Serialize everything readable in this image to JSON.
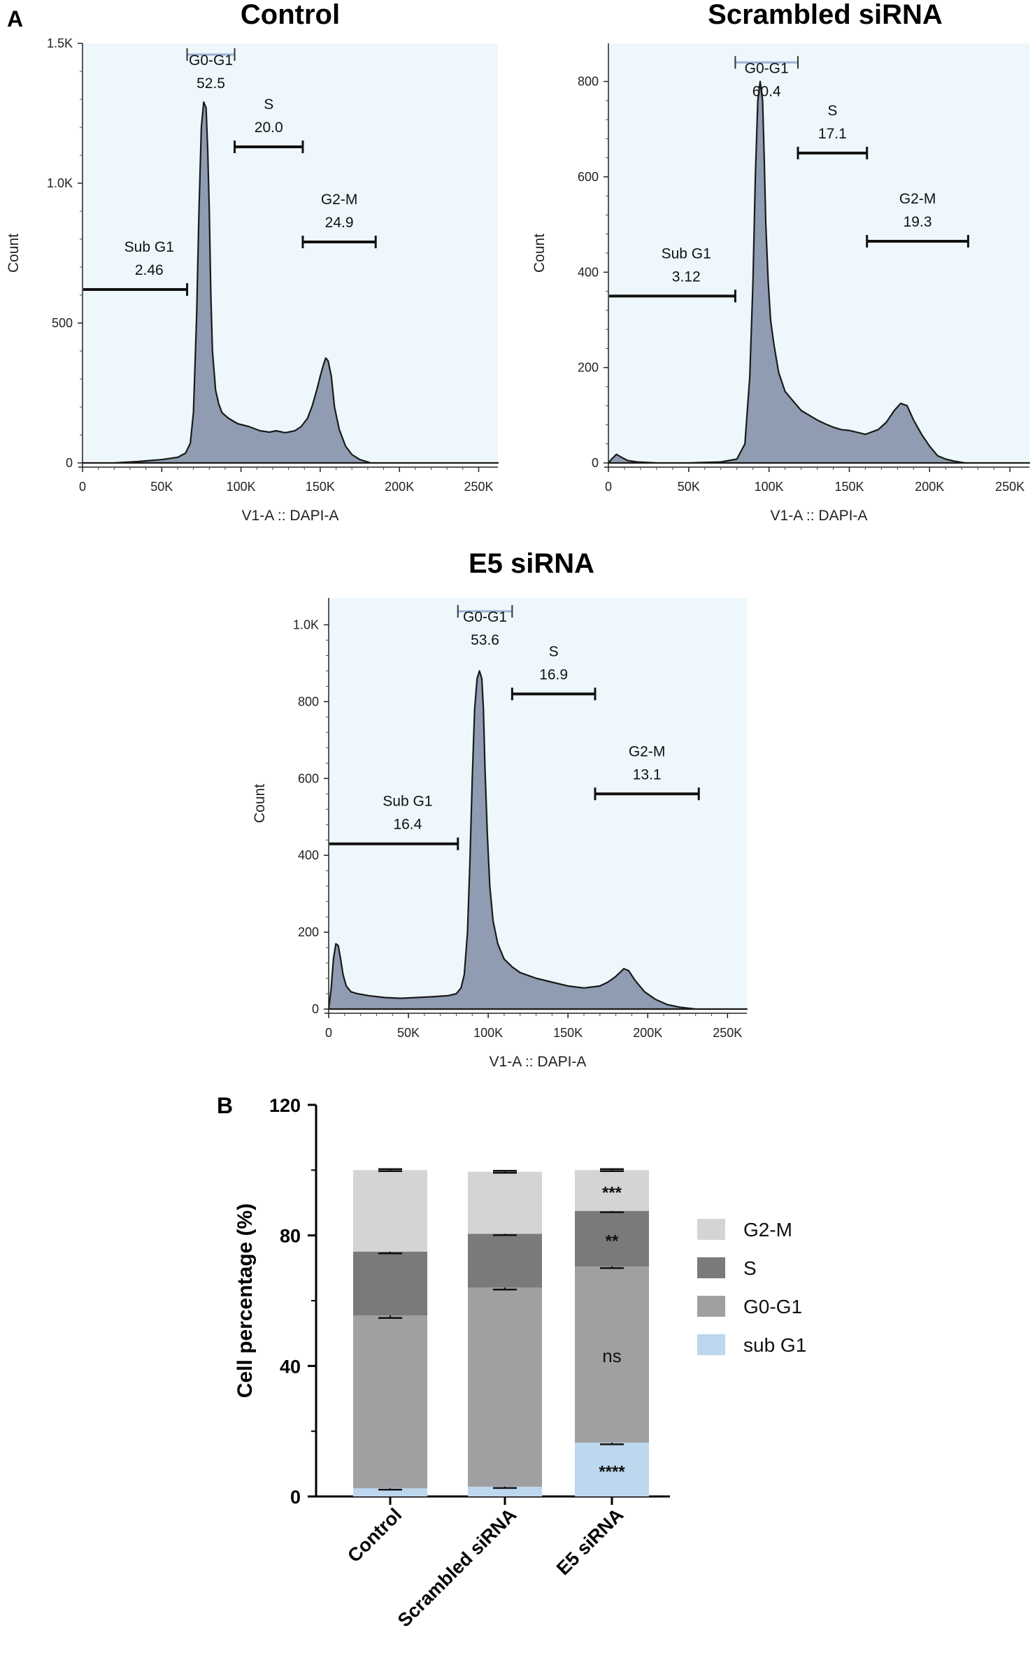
{
  "panel_labels": {
    "a": "A",
    "b": "B"
  },
  "colors": {
    "plot_bg": "#eef7fb",
    "hist_fill": "#8f9cb2",
    "hist_line": "#1a1a1a",
    "gate_g0g1_bar": "#9bb3d3",
    "sub_g1": "#bcd7ee",
    "g0_g1": "#a0a0a3",
    "s": "#7a7a7c",
    "g2_m": "#d4d4d6"
  },
  "chart_data": [
    {
      "type": "area",
      "title": "Control",
      "xlabel": "V1-A :: DAPI-A",
      "ylabel": "Count",
      "xlim": [
        0,
        262144
      ],
      "ylim": [
        0,
        1500
      ],
      "xticks": [
        0,
        50000,
        100000,
        150000,
        200000,
        250000
      ],
      "xtick_labels": [
        "0",
        "50K",
        "100K",
        "150K",
        "200K",
        "250K"
      ],
      "yticks": [
        0,
        500,
        1000,
        1500
      ],
      "ytick_labels": [
        "0",
        "500",
        "1.0K",
        "1.5K"
      ],
      "x": [
        0,
        20000,
        35000,
        50000,
        60000,
        65000,
        68000,
        70000,
        72000,
        73500,
        75000,
        76500,
        78000,
        79000,
        80000,
        81000,
        82000,
        84000,
        86000,
        88000,
        92000,
        98000,
        105000,
        112000,
        118000,
        122000,
        128000,
        134000,
        138000,
        142000,
        145000,
        148000,
        150000,
        152000,
        153500,
        155000,
        157000,
        159000,
        162000,
        166000,
        170000,
        175000,
        182000,
        200000,
        262144
      ],
      "y": [
        0,
        0,
        5,
        12,
        20,
        35,
        70,
        180,
        520,
        900,
        1200,
        1290,
        1270,
        1120,
        900,
        600,
        400,
        260,
        210,
        180,
        160,
        140,
        130,
        115,
        110,
        115,
        108,
        115,
        130,
        160,
        205,
        265,
        310,
        350,
        375,
        365,
        310,
        200,
        120,
        60,
        30,
        12,
        0,
        0,
        0
      ],
      "gates": [
        {
          "name": "Sub G1",
          "value": "2.46",
          "x_range": [
            0,
            66000
          ],
          "y": 620
        },
        {
          "name": "G0-G1",
          "value": "52.5",
          "x_range": [
            66000,
            96000
          ],
          "y": 1460
        },
        {
          "name": "S",
          "value": "20.0",
          "x_range": [
            96000,
            139000
          ],
          "y": 1130
        },
        {
          "name": "G2-M",
          "value": "24.9",
          "x_range": [
            139000,
            185000
          ],
          "y": 790
        }
      ]
    },
    {
      "type": "area",
      "title": "Scrambled siRNA",
      "xlabel": "V1-A :: DAPI-A",
      "ylabel": "Count",
      "xlim": [
        0,
        262144
      ],
      "ylim": [
        0,
        880
      ],
      "xticks": [
        0,
        50000,
        100000,
        150000,
        200000,
        250000
      ],
      "xtick_labels": [
        "0",
        "50K",
        "100K",
        "150K",
        "200K",
        "250K"
      ],
      "yticks": [
        0,
        200,
        400,
        600,
        800
      ],
      "ytick_labels": [
        "0",
        "200",
        "400",
        "600",
        "800"
      ],
      "x": [
        0,
        2000,
        5000,
        8000,
        12000,
        18000,
        30000,
        50000,
        70000,
        80000,
        85000,
        88000,
        90000,
        91500,
        93000,
        94500,
        96000,
        97000,
        98000,
        99500,
        101000,
        103000,
        106000,
        110000,
        115000,
        120000,
        125000,
        130000,
        135000,
        140000,
        145000,
        150000,
        160000,
        168000,
        173000,
        178000,
        182000,
        186000,
        190000,
        195000,
        200000,
        205000,
        210000,
        215000,
        222000,
        262144
      ],
      "y": [
        0,
        8,
        18,
        12,
        5,
        2,
        0,
        0,
        2,
        8,
        40,
        180,
        380,
        600,
        760,
        800,
        760,
        640,
        500,
        380,
        300,
        250,
        190,
        150,
        130,
        110,
        100,
        90,
        82,
        75,
        70,
        68,
        60,
        70,
        85,
        110,
        125,
        120,
        90,
        60,
        35,
        15,
        8,
        4,
        0,
        0
      ],
      "gates": [
        {
          "name": "Sub G1",
          "value": "3.12",
          "x_range": [
            0,
            79000
          ],
          "y": 350
        },
        {
          "name": "G0-G1",
          "value": "60.4",
          "x_range": [
            79000,
            118000
          ],
          "y": 840
        },
        {
          "name": "S",
          "value": "17.1",
          "x_range": [
            118000,
            161000
          ],
          "y": 650
        },
        {
          "name": "G2-M",
          "value": "19.3",
          "x_range": [
            161000,
            224000
          ],
          "y": 465
        }
      ]
    },
    {
      "type": "area",
      "title": "E5 siRNA",
      "xlabel": "V1-A :: DAPI-A",
      "ylabel": "Count",
      "xlim": [
        0,
        262144
      ],
      "ylim": [
        0,
        1070
      ],
      "xticks": [
        0,
        50000,
        100000,
        150000,
        200000,
        250000
      ],
      "xtick_labels": [
        "0",
        "50K",
        "100K",
        "150K",
        "200K",
        "250K"
      ],
      "yticks": [
        0,
        200,
        400,
        600,
        800,
        1000
      ],
      "ytick_labels": [
        "0",
        "200",
        "400",
        "600",
        "800",
        "1.0K"
      ],
      "x": [
        0,
        1500,
        3000,
        4500,
        6000,
        7500,
        9000,
        11000,
        14000,
        18000,
        25000,
        35000,
        45000,
        55000,
        65000,
        75000,
        80000,
        83000,
        85000,
        87000,
        88500,
        90000,
        91500,
        93000,
        94500,
        96000,
        97000,
        98000,
        99500,
        101000,
        103000,
        106000,
        110000,
        115000,
        120000,
        130000,
        140000,
        150000,
        160000,
        170000,
        175000,
        180000,
        185000,
        188000,
        192000,
        198000,
        205000,
        212000,
        220000,
        230000,
        262144
      ],
      "y": [
        0,
        50,
        130,
        170,
        165,
        130,
        90,
        60,
        45,
        40,
        35,
        30,
        28,
        30,
        32,
        35,
        40,
        55,
        90,
        200,
        380,
        600,
        780,
        860,
        880,
        860,
        780,
        620,
        450,
        320,
        230,
        170,
        130,
        110,
        95,
        80,
        70,
        60,
        55,
        60,
        70,
        85,
        105,
        100,
        75,
        45,
        25,
        12,
        5,
        0,
        0
      ],
      "gates": [
        {
          "name": "Sub G1",
          "value": "16.4",
          "x_range": [
            0,
            81000
          ],
          "y": 430
        },
        {
          "name": "G0-G1",
          "value": "53.6",
          "x_range": [
            81000,
            115000
          ],
          "y": 1035
        },
        {
          "name": "S",
          "value": "16.9",
          "x_range": [
            115000,
            167000
          ],
          "y": 820
        },
        {
          "name": "G2-M",
          "value": "13.1",
          "x_range": [
            167000,
            232000
          ],
          "y": 560
        }
      ]
    },
    {
      "type": "bar",
      "stacked": true,
      "xlabel": "",
      "ylabel": "Cell percentage (%)",
      "ylim": [
        0,
        120
      ],
      "yticks": [
        0,
        40,
        80,
        120
      ],
      "ytick_labels": [
        "0",
        "40",
        "80",
        "120"
      ],
      "categories": [
        "Control",
        "Scrambled siRNA",
        "E5 siRNA"
      ],
      "series": [
        {
          "name": "sub G1",
          "color_key": "sub_g1",
          "values": [
            2.5,
            3.0,
            16.5
          ],
          "errors": [
            0.4,
            0.4,
            0.5
          ]
        },
        {
          "name": "G0-G1",
          "color_key": "g0_g1",
          "values": [
            53.0,
            61.0,
            54.0
          ],
          "errors": [
            0.8,
            0.6,
            0.5
          ]
        },
        {
          "name": "S",
          "color_key": "s",
          "values": [
            19.5,
            16.5,
            17.0
          ],
          "errors": [
            0.5,
            0.4,
            0.4
          ]
        },
        {
          "name": "G2-M",
          "color_key": "g2_m",
          "values": [
            25.0,
            19.0,
            12.5
          ],
          "errors": [
            0.3,
            0.3,
            0.3
          ]
        }
      ],
      "legend": [
        "G2-M",
        "S",
        "G0-G1",
        "sub G1"
      ],
      "legend_position": "right",
      "annotations": [
        {
          "category": "E5 siRNA",
          "series": "sub G1",
          "text": "****"
        },
        {
          "category": "E5 siRNA",
          "series": "G0-G1",
          "text": "ns"
        },
        {
          "category": "E5 siRNA",
          "series": "S",
          "text": "**"
        },
        {
          "category": "E5 siRNA",
          "series": "G2-M",
          "text": "***"
        }
      ]
    }
  ]
}
